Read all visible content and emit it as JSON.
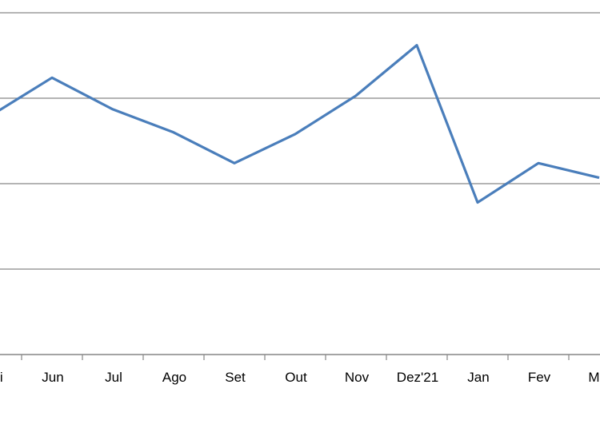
{
  "chart_data": {
    "type": "line",
    "title": "",
    "xlabel": "",
    "ylabel": "",
    "categories": [
      "Mai",
      "Jun",
      "Jul",
      "Ago",
      "Set",
      "Out",
      "Nov",
      "Dez'21",
      "Jan",
      "Fev",
      "Mar"
    ],
    "series": [
      {
        "values": [
          2.8,
          3.24,
          2.87,
          2.6,
          2.24,
          2.58,
          3.03,
          3.62,
          1.78,
          2.24,
          2.07
        ],
        "color": "#4a7ebb"
      }
    ],
    "ylim": [
      0,
      4
    ],
    "y_gridlines": [
      1,
      2,
      3,
      4
    ],
    "grid": true,
    "y_tick_labels_visible": false,
    "legend": "none",
    "colors": {
      "line": "#4a7ebb",
      "grid": "#868686",
      "axis": "#868686"
    }
  }
}
